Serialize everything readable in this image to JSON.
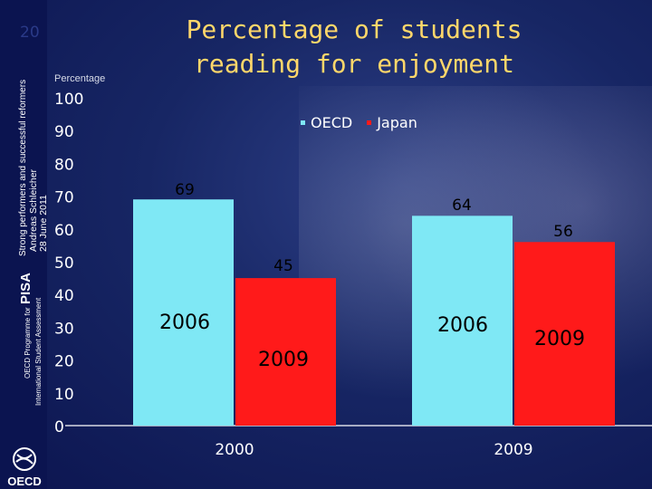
{
  "title_line1": "Percentage of students",
  "title_line2": "reading for enjoyment",
  "slide_number": "20",
  "sidebar": {
    "pisa": "PISA",
    "subtitle": "Strong performers and successful reformers",
    "author_line1": "Andreas Schleicher",
    "author_line2": "28 June 2011",
    "programme": "OECD Programme for",
    "assessment": "International Student Assessment"
  },
  "logo_text": "OECD",
  "colors": {
    "oecd": "#7fe8f5",
    "japan": "#ff1a1a",
    "title": "#ffd76a"
  },
  "chart_data": {
    "type": "bar",
    "ylabel": "Percentage",
    "ylim": [
      0,
      100
    ],
    "yticks": [
      0,
      10,
      20,
      30,
      40,
      50,
      60,
      70,
      80,
      90,
      100
    ],
    "categories": [
      "2000",
      "2009"
    ],
    "series": [
      {
        "name": "OECD",
        "values": [
          69,
          64
        ]
      },
      {
        "name": "Japan",
        "values": [
          45,
          56
        ]
      }
    ],
    "data_labels": [
      [
        "69",
        "45"
      ],
      [
        "64",
        "56"
      ]
    ],
    "annotations": [
      {
        "text": "2006"
      },
      {
        "text": "2009"
      },
      {
        "text": "2006"
      },
      {
        "text": "2009"
      }
    ]
  }
}
